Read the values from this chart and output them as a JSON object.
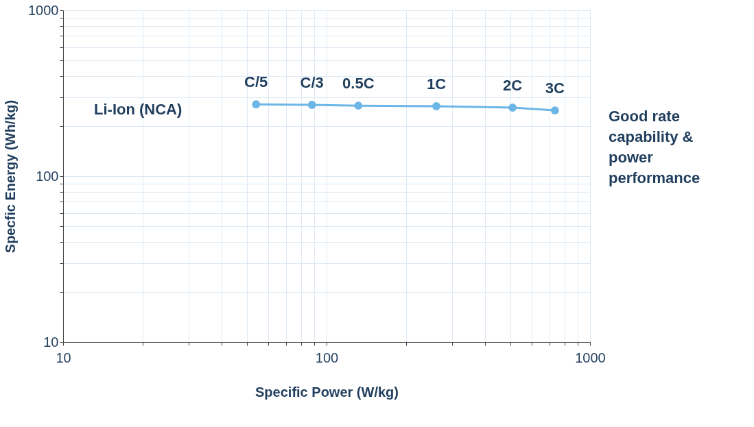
{
  "chart_data": {
    "type": "line",
    "xlabel": "Specific Power (W/kg)",
    "ylabel": "Specfic Energy (Wh/kg)",
    "log": "xy",
    "grid": true,
    "marker": "circle",
    "line_style": "solid",
    "xlim": [
      10,
      1000
    ],
    "ylim": [
      10,
      1000
    ],
    "xticks": [
      10,
      {
        "value": 20,
        "label": null
      },
      {
        "value": 30,
        "label": null
      },
      {
        "value": 40,
        "label": null
      },
      {
        "value": 50,
        "label": null
      },
      {
        "value": 60,
        "label": null
      },
      {
        "value": 70,
        "label": null
      },
      {
        "value": 80,
        "label": null
      },
      {
        "value": 90,
        "label": null
      },
      100,
      {
        "value": 200,
        "label": null
      },
      {
        "value": 300,
        "label": null
      },
      {
        "value": 400,
        "label": null
      },
      {
        "value": 500,
        "label": null
      },
      {
        "value": 600,
        "label": null
      },
      {
        "value": 700,
        "label": null
      },
      {
        "value": 800,
        "label": null
      },
      {
        "value": 900,
        "label": null
      },
      1000
    ],
    "yticks": [
      10,
      {
        "value": 20,
        "label": null
      },
      {
        "value": 30,
        "label": null
      },
      {
        "value": 40,
        "label": null
      },
      {
        "value": 50,
        "label": null
      },
      {
        "value": 60,
        "label": null
      },
      {
        "value": 70,
        "label": null
      },
      {
        "value": 80,
        "label": null
      },
      {
        "value": 90,
        "label": null
      },
      100,
      {
        "value": 200,
        "label": null
      },
      {
        "value": 300,
        "label": null
      },
      {
        "value": 400,
        "label": null
      },
      {
        "value": 500,
        "label": null
      },
      {
        "value": 600,
        "label": null
      },
      {
        "value": 700,
        "label": null
      },
      {
        "value": 800,
        "label": null
      },
      {
        "value": 900,
        "label": null
      },
      1000
    ],
    "series": [
      {
        "color": "#6cb6e6",
        "x": [
          54,
          88,
          132,
          261,
          508,
          736
        ],
        "values": [
          271,
          269,
          266,
          264,
          259,
          249
        ]
      }
    ],
    "annotations": [
      {
        "text": "C/5",
        "x": 54,
        "y": 271
      },
      {
        "text": "C/3",
        "x": 88,
        "y": 269
      },
      {
        "text": "0.5C",
        "x": 132,
        "y": 266
      },
      {
        "text": "1C",
        "x": 261,
        "y": 264
      },
      {
        "text": "2C",
        "x": 508,
        "y": 259
      },
      {
        "text": "3C",
        "x": 736,
        "y": 249
      },
      "Li-Ion (NCA)",
      "Good rate capability & power performance"
    ]
  }
}
